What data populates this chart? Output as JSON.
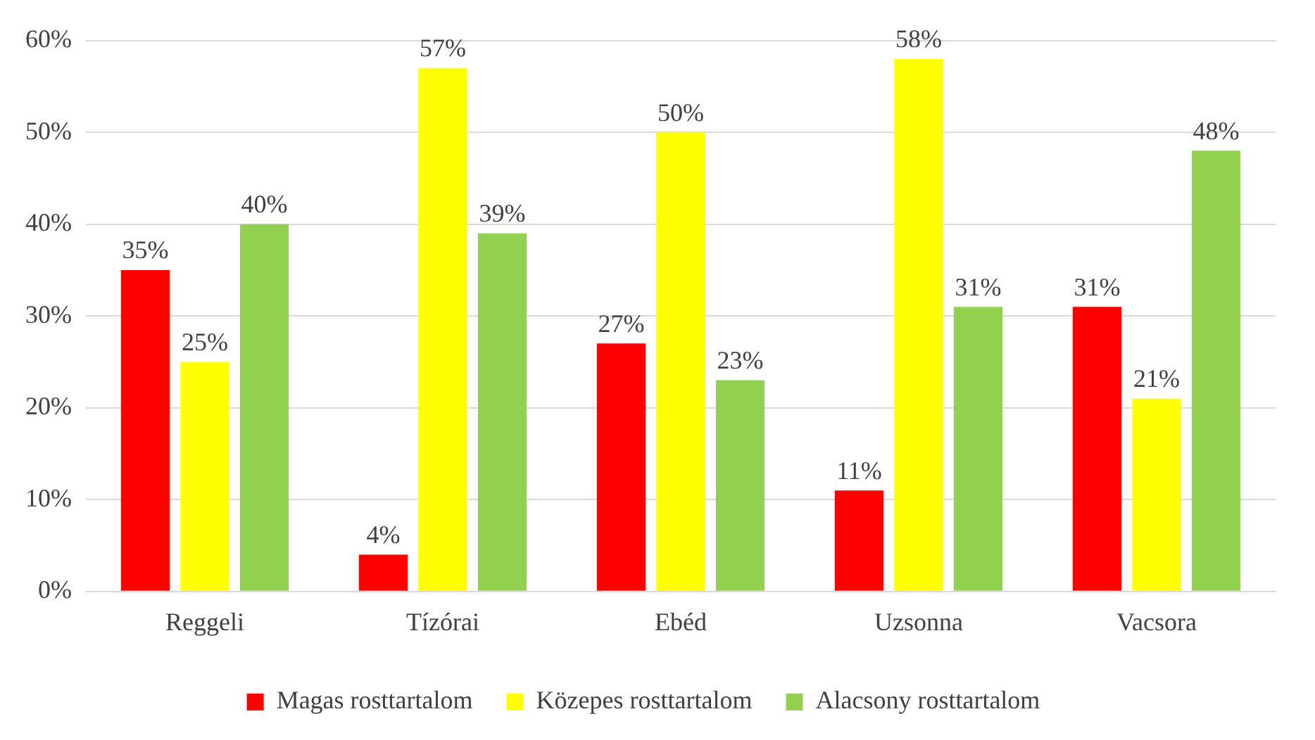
{
  "chart_data": {
    "type": "bar",
    "categories": [
      "Reggeli",
      "Tízórai",
      "Ebéd",
      "Uzsonna",
      "Vacsora"
    ],
    "series": [
      {
        "name": "Magas rosttartalom",
        "color": "#ff0000",
        "values": [
          35,
          4,
          27,
          11,
          31
        ],
        "value_labels": [
          "35%",
          "4%",
          "27%",
          "11%",
          "31%"
        ]
      },
      {
        "name": "Közepes rosttartalom",
        "color": "#ffff00",
        "values": [
          25,
          57,
          50,
          58,
          21
        ],
        "value_labels": [
          "25%",
          "57%",
          "50%",
          "58%",
          "21%"
        ]
      },
      {
        "name": "Alacsony rosttartalom",
        "color": "#92d050",
        "values": [
          40,
          39,
          23,
          31,
          48
        ],
        "value_labels": [
          "40%",
          "39%",
          "23%",
          "31%",
          "48%"
        ]
      }
    ],
    "ylim": [
      0,
      60
    ],
    "yticks": [
      {
        "value": 0,
        "label": "0%"
      },
      {
        "value": 10,
        "label": "10%"
      },
      {
        "value": 20,
        "label": "20%"
      },
      {
        "value": 30,
        "label": "30%"
      },
      {
        "value": 40,
        "label": "40%"
      },
      {
        "value": 50,
        "label": "50%"
      },
      {
        "value": 60,
        "label": "60%"
      }
    ],
    "grid": "y",
    "legend": "bottom"
  }
}
